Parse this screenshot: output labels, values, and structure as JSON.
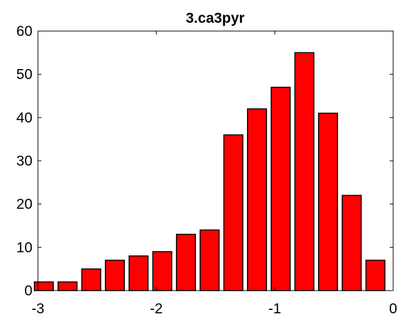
{
  "chart_data": {
    "type": "bar",
    "title": "3.ca3pyr",
    "xlabel": "",
    "ylabel": "",
    "bar_color": "#ff0000",
    "edge_color": "#000000",
    "background": "#ffffff",
    "grid": false,
    "xlim": [
      -3,
      0
    ],
    "ylim": [
      0,
      60
    ],
    "xticks": [
      -3,
      -2,
      -1,
      0
    ],
    "yticks": [
      0,
      10,
      20,
      30,
      40,
      50,
      60
    ],
    "bin_width": 0.2,
    "x": [
      -2.95,
      -2.75,
      -2.55,
      -2.35,
      -2.15,
      -1.95,
      -1.75,
      -1.55,
      -1.35,
      -1.15,
      -0.95,
      -0.75,
      -0.55,
      -0.35,
      -0.15
    ],
    "values": [
      2,
      2,
      5,
      7,
      8,
      9,
      13,
      14,
      36,
      42,
      47,
      55,
      41,
      22,
      7
    ]
  }
}
